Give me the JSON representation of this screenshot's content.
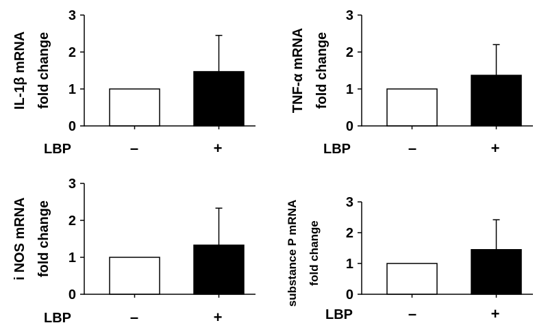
{
  "chart_data": [
    {
      "type": "bar",
      "ylabel": [
        "IL-1β mRNA",
        "fold change"
      ],
      "x_group_label": "LBP",
      "categories": [
        "–",
        "+"
      ],
      "values": [
        1.0,
        1.47
      ],
      "error_upper": [
        0,
        0.98
      ],
      "bar_fill": [
        "#ffffff",
        "#000000"
      ],
      "ylim": [
        0,
        3
      ],
      "yticks": [
        "0",
        "1",
        "2",
        "3"
      ],
      "grid": false
    },
    {
      "type": "bar",
      "ylabel": [
        "TNF-α mRNA",
        "fold change"
      ],
      "x_group_label": "LBP",
      "categories": [
        "–",
        "+"
      ],
      "values": [
        1.0,
        1.37
      ],
      "error_upper": [
        0,
        0.83
      ],
      "bar_fill": [
        "#ffffff",
        "#000000"
      ],
      "ylim": [
        0,
        3
      ],
      "yticks": [
        "0",
        "1",
        "2",
        "3"
      ],
      "grid": false
    },
    {
      "type": "bar",
      "ylabel": [
        "i NOS mRNA",
        "fold change"
      ],
      "x_group_label": "LBP",
      "categories": [
        "–",
        "+"
      ],
      "values": [
        1.0,
        1.33
      ],
      "error_upper": [
        0,
        1.0
      ],
      "bar_fill": [
        "#ffffff",
        "#000000"
      ],
      "ylim": [
        0,
        3
      ],
      "yticks": [
        "0",
        "1",
        "2",
        "3"
      ],
      "grid": false
    },
    {
      "type": "bar",
      "ylabel": [
        "substance P mRNA",
        "fold change"
      ],
      "x_group_label": "LBP",
      "categories": [
        "–",
        "+"
      ],
      "values": [
        1.0,
        1.45
      ],
      "error_upper": [
        0,
        0.97
      ],
      "bar_fill": [
        "#ffffff",
        "#000000"
      ],
      "ylim": [
        0,
        3
      ],
      "yticks": [
        "0",
        "1",
        "2",
        "3"
      ],
      "grid": false
    }
  ]
}
